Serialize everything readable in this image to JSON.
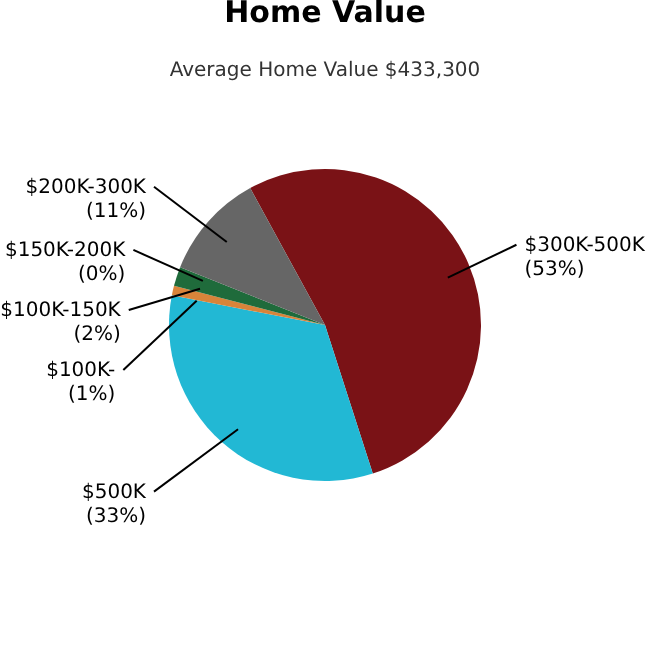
{
  "chart_data": {
    "type": "pie",
    "title": "Home Value",
    "subtitle": "Average Home Value  $433,300",
    "categories": [
      "$300K-500K",
      "$500K",
      "$100K-",
      "$100K-150K",
      "$150K-200K",
      "$200K-300K"
    ],
    "values": [
      53,
      33,
      1,
      2,
      0,
      11
    ],
    "value_labels": [
      "(53%)",
      "(33%)",
      "(1%)",
      "(2%)",
      "(0%)",
      "(11%)"
    ],
    "colors": [
      "#7a1216",
      "#22b8d4",
      "#d8843a",
      "#1f6b3b",
      "#2a5a3a",
      "#666666"
    ],
    "legend": false
  }
}
